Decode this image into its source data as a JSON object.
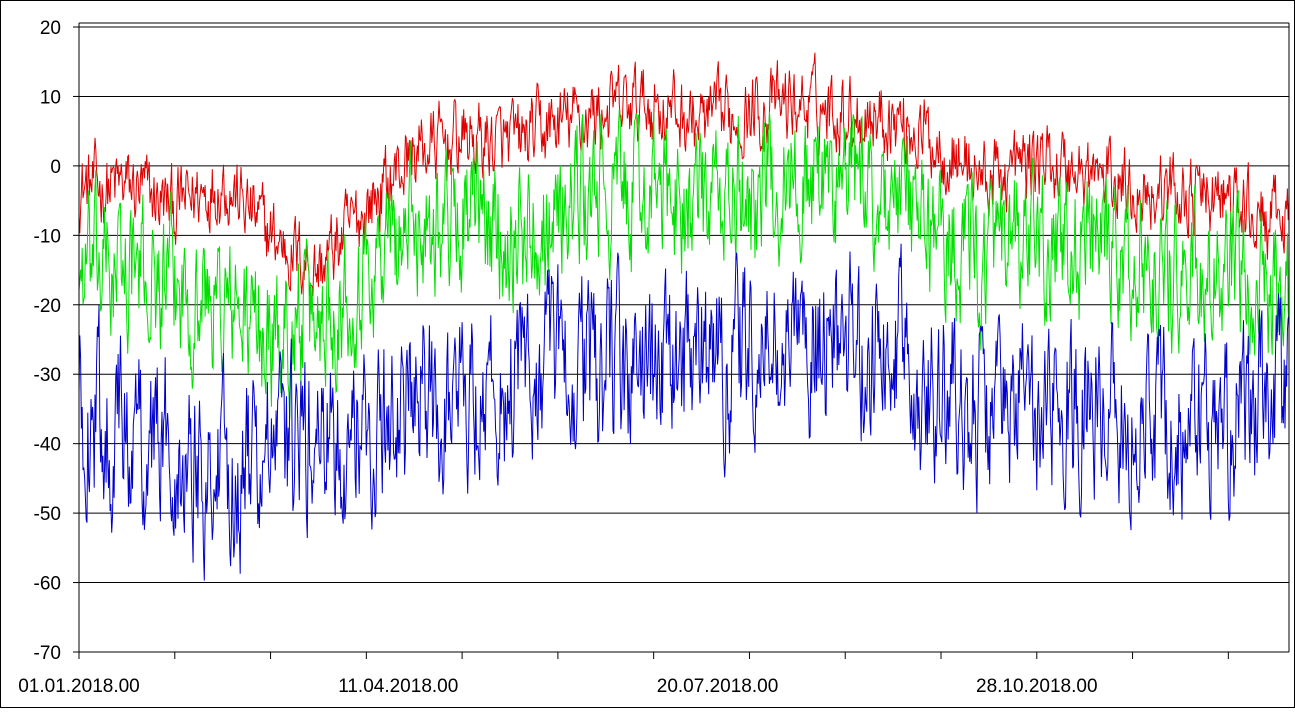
{
  "chart_data": {
    "type": "line",
    "title": "",
    "xlabel": "",
    "ylabel": "",
    "ylim": [
      -70,
      20
    ],
    "yticks": [
      20,
      10,
      0,
      -10,
      -20,
      -30,
      -40,
      -50,
      -60,
      -70
    ],
    "yticklabels": [
      "20",
      "10",
      "0",
      "-10",
      "-20",
      "-30",
      "-40",
      "-50",
      "-60",
      "-70"
    ],
    "xlim": [
      "2018-01-01",
      "2019-01-15"
    ],
    "x_major_ticks": [
      "2018-01-01",
      "2018-01-31",
      "2018-03-02",
      "2018-04-01",
      "2018-05-01",
      "2018-05-31",
      "2018-06-30",
      "2018-07-30",
      "2018-08-29",
      "2018-09-28",
      "2018-10-28",
      "2018-11-27",
      "2018-12-27"
    ],
    "x_tick_labels": [
      {
        "date": "2018-01-01",
        "label": "01.01.2018.00"
      },
      {
        "date": "2018-04-11",
        "label": "11.04.2018.00"
      },
      {
        "date": "2018-07-20",
        "label": "20.07.2018.00"
      },
      {
        "date": "2018-10-28",
        "label": "28.10.2018.00"
      }
    ],
    "grid": {
      "horizontal": true,
      "vertical": false
    },
    "colors": {
      "red": "#e00000",
      "green": "#00e000",
      "blue": "#0000cc",
      "grid": "#000000"
    },
    "series": [
      {
        "color": "red",
        "sample_days": [
          0,
          15,
          30,
          45,
          60,
          75,
          90,
          105,
          120,
          135,
          150,
          165,
          180,
          195,
          210,
          225,
          240,
          255,
          270,
          285,
          300,
          315,
          330,
          345,
          360,
          370
        ],
        "values": [
          -3,
          -3,
          -6,
          -2,
          -10,
          -15,
          -6,
          2,
          4,
          3,
          6,
          8,
          9,
          6,
          8,
          9,
          8,
          7,
          3,
          -2,
          1,
          -1,
          -3,
          -4,
          -5,
          -8
        ],
        "noise_amplitude": 5
      },
      {
        "color": "green",
        "sample_days": [
          0,
          15,
          30,
          45,
          60,
          75,
          90,
          105,
          120,
          135,
          150,
          165,
          180,
          195,
          210,
          225,
          240,
          255,
          270,
          285,
          300,
          315,
          330,
          345,
          360,
          370
        ],
        "values": [
          -15,
          -15,
          -18,
          -20,
          -25,
          -22,
          -15,
          -8,
          -7,
          -10,
          -6,
          -4,
          -4,
          -6,
          -4,
          -2,
          -2,
          -5,
          -10,
          -14,
          -12,
          -12,
          -15,
          -16,
          -18,
          -18
        ],
        "noise_amplitude": 9
      },
      {
        "color": "blue",
        "sample_days": [
          0,
          15,
          30,
          45,
          60,
          75,
          90,
          105,
          120,
          135,
          150,
          165,
          180,
          195,
          210,
          225,
          240,
          255,
          270,
          285,
          300,
          315,
          330,
          345,
          360,
          370
        ],
        "values": [
          -35,
          -38,
          -40,
          -45,
          -42,
          -40,
          -38,
          -35,
          -33,
          -32,
          -28,
          -30,
          -30,
          -28,
          -28,
          -26,
          -26,
          -27,
          -32,
          -36,
          -34,
          -34,
          -36,
          -38,
          -38,
          -34
        ],
        "noise_amplitude": 11
      }
    ]
  }
}
